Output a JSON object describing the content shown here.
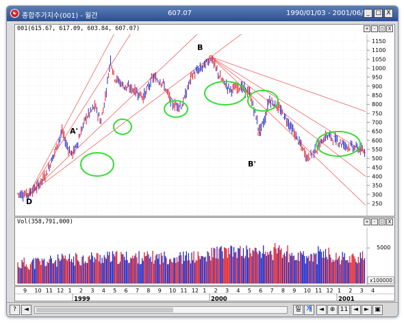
{
  "window": {
    "title": "종합주가지수(001) - 월간",
    "price": "607.07",
    "date_range": "1990/01/03 - 2001/06/01",
    "buttons": [
      "_",
      "□",
      "X"
    ]
  },
  "price_pane": {
    "header": "001(615.67, 617.09, 603.84, 607.07)",
    "y_ticks": [
      "1150",
      "1100",
      "1050",
      "1000",
      "950",
      "900",
      "850",
      "800",
      "750",
      "700",
      "650",
      "600",
      "550",
      "500",
      "450",
      "400",
      "350",
      "300",
      "250"
    ],
    "annotations": [
      "A'",
      "B",
      "B'",
      "D"
    ]
  },
  "volume_pane": {
    "header": "Vol(358,791,000)",
    "y_label": "5000",
    "unit_label": "x100000"
  },
  "x_axis": {
    "months": [
      "9",
      "10",
      "11",
      "12",
      "1",
      "2",
      "3",
      "4",
      "5",
      "6",
      "7",
      "8",
      "9",
      "10",
      "11",
      "12",
      "1",
      "2",
      "3",
      "4",
      "5",
      "6",
      "7",
      "8",
      "9",
      "10",
      "11",
      "12",
      "1",
      "2",
      "3",
      "4"
    ],
    "years": [
      "1999",
      "2000",
      "2001"
    ]
  },
  "pane_buttons": [
    "+",
    "-",
    "□",
    "X"
  ],
  "bottom_bar": {
    "left_buttons": [
      "?",
      "◄"
    ],
    "right_buttons": [
      "일",
      "개",
      "◄",
      "⊕",
      "11",
      "◄",
      "►",
      "▣"
    ]
  }
}
